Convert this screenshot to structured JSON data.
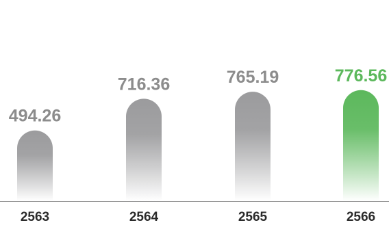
{
  "chart_data": {
    "type": "bar",
    "categories": [
      "2563",
      "2564",
      "2565",
      "2566"
    ],
    "values": [
      494.26,
      716.36,
      765.19,
      776.56
    ],
    "value_labels": [
      "494.26",
      "716.36",
      "765.19",
      "776.56"
    ],
    "highlight_index": 3,
    "title": "",
    "xlabel": "",
    "ylabel": "",
    "grid": false,
    "legend": "none",
    "colors": {
      "bar": "#9b9b9d",
      "bar_fade": "#ffffff",
      "highlight": "#5cb85c",
      "label": "#8c8c8c",
      "highlight_label": "#5cb85c",
      "axis": "#8a8a8a"
    }
  }
}
